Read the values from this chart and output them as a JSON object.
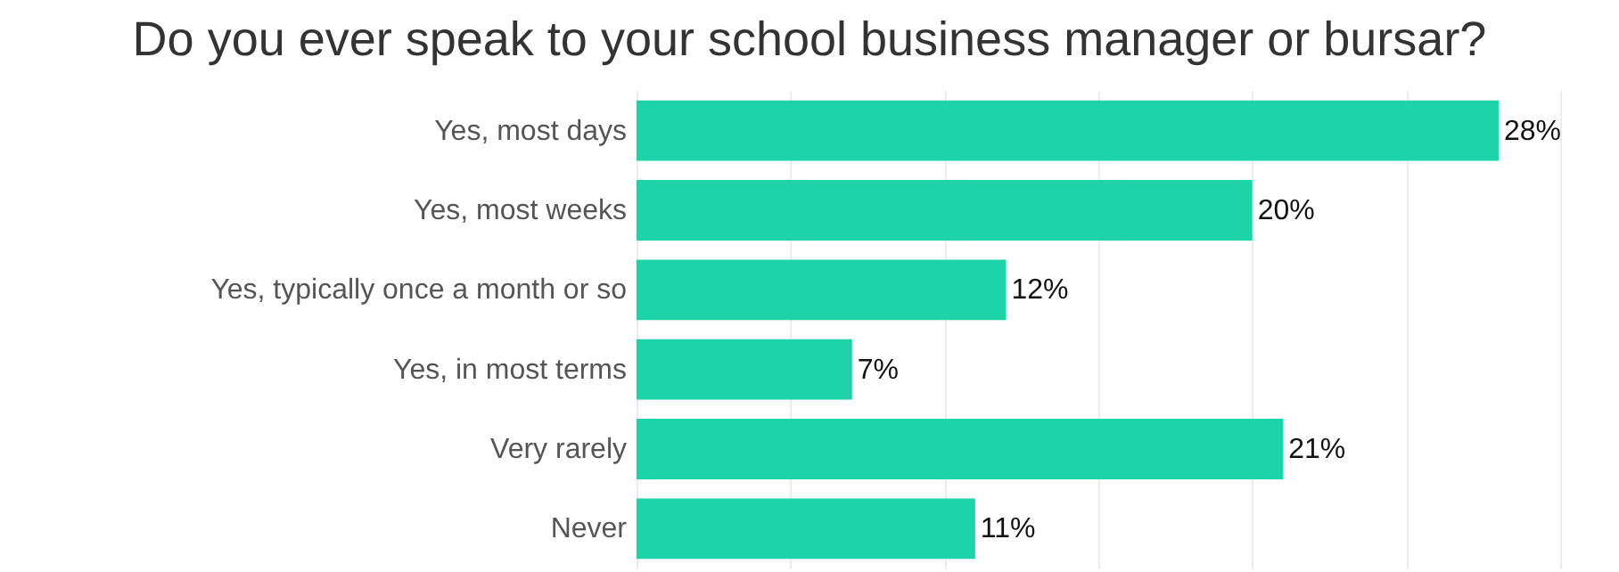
{
  "chart_data": {
    "type": "bar",
    "orientation": "horizontal",
    "title": "Do you ever speak to your school business manager or bursar?",
    "categories": [
      "Yes, most days",
      "Yes, most weeks",
      "Yes, typically once a month or so",
      "Yes, in most terms",
      "Very rarely",
      "Never"
    ],
    "values": [
      28,
      20,
      12,
      7,
      21,
      11
    ],
    "value_labels": [
      "28%",
      "20%",
      "12%",
      "7%",
      "21%",
      "11%"
    ],
    "color": "#1dd3a7",
    "xlim": [
      0,
      30
    ],
    "xticks": [
      0,
      5,
      10,
      15,
      20,
      25,
      30
    ],
    "grid": "x",
    "tick_labels": "y"
  }
}
